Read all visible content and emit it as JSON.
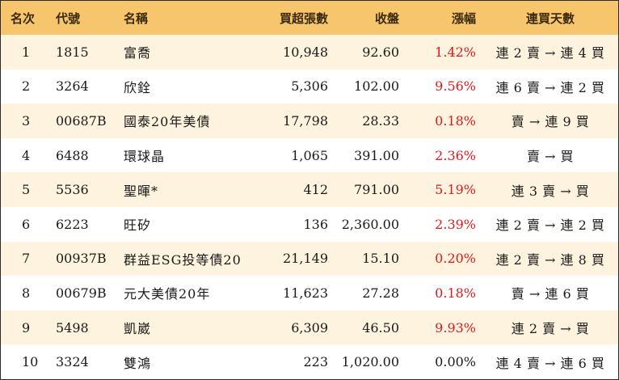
{
  "colors": {
    "header_bg": "#f7c56b",
    "row_odd": "#fdf3de",
    "row_even": "#ffffff",
    "up": "#e0191c",
    "flat": "#1a1a1a"
  },
  "headers": {
    "rank": "名次",
    "code": "代號",
    "name": "名稱",
    "volume": "買超張數",
    "close": "收盤",
    "change": "漲幅",
    "days": "連買天數"
  },
  "rows": [
    {
      "rank": "1",
      "code": "1815",
      "name": "富喬",
      "volume": "10,948",
      "close": "92.60",
      "change": "1.42%",
      "dir": "up",
      "days": "連 2 賣 → 連 4 買"
    },
    {
      "rank": "2",
      "code": "3264",
      "name": "欣銓",
      "volume": "5,306",
      "close": "102.00",
      "change": "9.56%",
      "dir": "up",
      "days": "連 6 賣 → 連 2 買"
    },
    {
      "rank": "3",
      "code": "00687B",
      "name": "國泰20年美債",
      "volume": "17,798",
      "close": "28.33",
      "change": "0.18%",
      "dir": "up",
      "days": "賣 → 連 9 買"
    },
    {
      "rank": "4",
      "code": "6488",
      "name": "環球晶",
      "volume": "1,065",
      "close": "391.00",
      "change": "2.36%",
      "dir": "up",
      "days": "賣 → 買"
    },
    {
      "rank": "5",
      "code": "5536",
      "name": "聖暉*",
      "volume": "412",
      "close": "791.00",
      "change": "5.19%",
      "dir": "up",
      "days": "連 3 賣 → 買"
    },
    {
      "rank": "6",
      "code": "6223",
      "name": "旺矽",
      "volume": "136",
      "close": "2,360.00",
      "change": "2.39%",
      "dir": "up",
      "days": "連 2 賣 → 連 2 買"
    },
    {
      "rank": "7",
      "code": "00937B",
      "name": "群益ESG投等債20",
      "volume": "21,149",
      "close": "15.10",
      "change": "0.20%",
      "dir": "up",
      "days": "連 2 賣 → 連 8 買"
    },
    {
      "rank": "8",
      "code": "00679B",
      "name": "元大美債20年",
      "volume": "11,623",
      "close": "27.28",
      "change": "0.18%",
      "dir": "up",
      "days": "賣 → 連 6 買"
    },
    {
      "rank": "9",
      "code": "5498",
      "name": "凱崴",
      "volume": "6,309",
      "close": "46.50",
      "change": "9.93%",
      "dir": "up",
      "days": "連 2 賣 → 買"
    },
    {
      "rank": "10",
      "code": "3324",
      "name": "雙鴻",
      "volume": "223",
      "close": "1,020.00",
      "change": "0.00%",
      "dir": "flat",
      "days": "連 4 賣 → 連 6 買"
    }
  ]
}
